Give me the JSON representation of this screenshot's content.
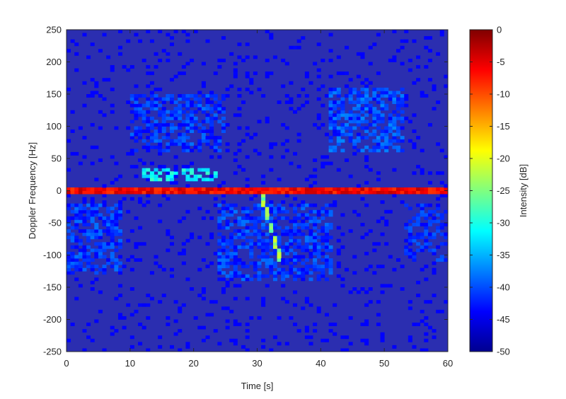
{
  "chart_data": {
    "type": "heatmap",
    "xlabel": "Time [s]",
    "ylabel": "Doppler Frequency [Hz]",
    "xlim": [
      0,
      60
    ],
    "ylim": [
      -250,
      250
    ],
    "xticks": [
      0,
      10,
      20,
      30,
      40,
      50,
      60
    ],
    "yticks": [
      250,
      200,
      150,
      100,
      50,
      0,
      -50,
      -100,
      -150,
      -200,
      -250
    ],
    "colorbar": {
      "label": "Intensity [dB]",
      "range": [
        -50,
        0
      ],
      "ticks": [
        0,
        -5,
        -10,
        -15,
        -20,
        -25,
        -30,
        -35,
        -40,
        -45,
        -50
      ],
      "colormap": "jet",
      "placement": "right"
    },
    "grid": false,
    "features": [
      {
        "t_range": [
          0,
          60
        ],
        "doppler_hz": 0,
        "intensity_db": -3
      },
      {
        "t_range": [
          12,
          24
        ],
        "doppler_hz_range": [
          15,
          35
        ],
        "intensity_db": -28
      },
      {
        "t_range": [
          30.5,
          34
        ],
        "doppler_hz_range": [
          0,
          -120
        ],
        "intensity_db": -20
      },
      {
        "t_range": [
          10,
          25
        ],
        "doppler_hz_range": [
          60,
          150
        ],
        "intensity_db": -38
      },
      {
        "t_range": [
          41,
          53
        ],
        "doppler_hz_range": [
          60,
          160
        ],
        "intensity_db": -37
      },
      {
        "t_range": [
          0,
          9
        ],
        "doppler_hz_range": [
          -130,
          -20
        ],
        "intensity_db": -38
      },
      {
        "t_range": [
          24,
          42
        ],
        "doppler_hz_range": [
          -140,
          -20
        ],
        "intensity_db": -38
      },
      {
        "t_range": [
          53,
          60
        ],
        "doppler_hz_range": [
          -110,
          -20
        ],
        "intensity_db": -39
      }
    ],
    "background_db": -46
  }
}
